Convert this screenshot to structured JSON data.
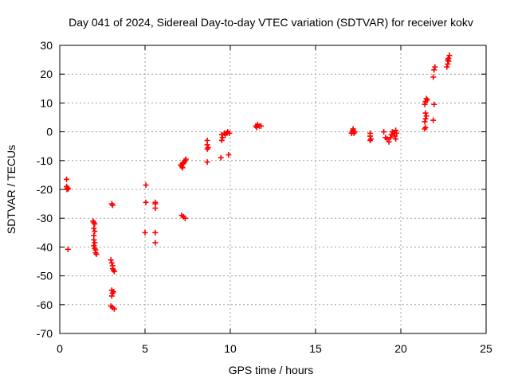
{
  "chart_data": {
    "type": "scatter",
    "title": "Day 041 of 2024, Sidereal Day-to-day VTEC variation (SDTVAR) for receiver kokv",
    "xlabel": "GPS time / hours",
    "ylabel": "SDTVAR / TECUs",
    "xlim": [
      0,
      25
    ],
    "ylim": [
      -70,
      30
    ],
    "xticks": [
      0,
      5,
      10,
      15,
      20,
      25
    ],
    "yticks": [
      -70,
      -60,
      -50,
      -40,
      -30,
      -20,
      -10,
      0,
      10,
      20,
      30
    ],
    "grid": true,
    "marker": "+",
    "color": "#ff0000",
    "series": [
      {
        "name": "SDTVAR",
        "points": [
          [
            0.4,
            -16.5
          ],
          [
            0.4,
            -19.0
          ],
          [
            0.45,
            -19.5
          ],
          [
            0.5,
            -19.8
          ],
          [
            0.42,
            -20.0
          ],
          [
            0.48,
            -40.8
          ],
          [
            1.95,
            -31.0
          ],
          [
            2.0,
            -31.5
          ],
          [
            2.05,
            -32.0
          ],
          [
            2.0,
            -33.5
          ],
          [
            2.05,
            -34.5
          ],
          [
            2.0,
            -37.5
          ],
          [
            2.05,
            -38.5
          ],
          [
            2.0,
            -39.5
          ],
          [
            2.05,
            -40.5
          ],
          [
            2.1,
            -41.0
          ],
          [
            2.1,
            -42.0
          ],
          [
            2.15,
            -42.5
          ],
          [
            2.0,
            -36.0
          ],
          [
            3.05,
            -25.0
          ],
          [
            3.1,
            -25.5
          ],
          [
            3.0,
            -44.5
          ],
          [
            3.05,
            -45.5
          ],
          [
            3.1,
            -46.5
          ],
          [
            3.1,
            -47.5
          ],
          [
            3.15,
            -48.0
          ],
          [
            3.2,
            -48.5
          ],
          [
            3.05,
            -55.0
          ],
          [
            3.1,
            -56.0
          ],
          [
            3.05,
            -57.0
          ],
          [
            3.15,
            -55.5
          ],
          [
            3.0,
            -60.5
          ],
          [
            3.1,
            -61.0
          ],
          [
            3.2,
            -61.5
          ],
          [
            5.05,
            -18.5
          ],
          [
            5.05,
            -24.5
          ],
          [
            5.0,
            -35.0
          ],
          [
            5.6,
            -24.5
          ],
          [
            5.6,
            -25.0
          ],
          [
            5.6,
            -26.5
          ],
          [
            5.6,
            -35.0
          ],
          [
            5.6,
            -38.5
          ],
          [
            7.15,
            -29.0
          ],
          [
            7.25,
            -29.5
          ],
          [
            7.35,
            -30.0
          ],
          [
            7.1,
            -11.5
          ],
          [
            7.15,
            -12.0
          ],
          [
            7.2,
            -11.0
          ],
          [
            7.25,
            -11.0
          ],
          [
            7.3,
            -10.5
          ],
          [
            7.35,
            -10.0
          ],
          [
            7.4,
            -9.5
          ],
          [
            7.2,
            -12.5
          ],
          [
            8.65,
            -3.0
          ],
          [
            8.65,
            -4.5
          ],
          [
            8.7,
            -5.5
          ],
          [
            8.65,
            -6.0
          ],
          [
            8.65,
            -10.5
          ],
          [
            9.45,
            -9.0
          ],
          [
            9.5,
            -1.0
          ],
          [
            9.55,
            -2.0
          ],
          [
            9.5,
            -3.0
          ],
          [
            9.65,
            -0.5
          ],
          [
            9.7,
            -1.0
          ],
          [
            9.8,
            -0.5
          ],
          [
            9.85,
            0.0
          ],
          [
            9.9,
            -8.0
          ],
          [
            9.95,
            -0.5
          ],
          [
            11.5,
            2.0
          ],
          [
            11.55,
            1.5
          ],
          [
            11.6,
            2.5
          ],
          [
            11.7,
            2.0
          ],
          [
            11.8,
            2.0
          ],
          [
            17.1,
            -0.5
          ],
          [
            17.15,
            0.0
          ],
          [
            17.2,
            0.5
          ],
          [
            17.2,
            1.0
          ],
          [
            17.25,
            -0.5
          ],
          [
            17.3,
            0.0
          ],
          [
            18.2,
            -0.5
          ],
          [
            18.2,
            -1.5
          ],
          [
            18.25,
            -2.5
          ],
          [
            18.2,
            -3.0
          ],
          [
            19.0,
            0.0
          ],
          [
            19.1,
            -2.0
          ],
          [
            19.2,
            -2.5
          ],
          [
            19.3,
            -3.5
          ],
          [
            19.4,
            -2.0
          ],
          [
            19.45,
            -1.0
          ],
          [
            19.5,
            0.0
          ],
          [
            19.6,
            -0.5
          ],
          [
            19.65,
            -1.5
          ],
          [
            19.7,
            -2.5
          ],
          [
            19.7,
            0.5
          ],
          [
            19.75,
            -0.5
          ],
          [
            21.4,
            1.0
          ],
          [
            21.45,
            1.5
          ],
          [
            21.4,
            3.5
          ],
          [
            21.45,
            4.5
          ],
          [
            21.5,
            5.5
          ],
          [
            21.45,
            6.5
          ],
          [
            21.4,
            9.5
          ],
          [
            21.45,
            10.5
          ],
          [
            21.5,
            11.5
          ],
          [
            21.55,
            11.0
          ],
          [
            21.9,
            4.0
          ],
          [
            21.95,
            9.5
          ],
          [
            21.9,
            19.0
          ],
          [
            21.95,
            21.5
          ],
          [
            22.0,
            22.5
          ],
          [
            22.7,
            22.5
          ],
          [
            22.75,
            23.5
          ],
          [
            22.8,
            24.5
          ],
          [
            22.75,
            25.0
          ],
          [
            22.8,
            25.5
          ],
          [
            22.85,
            26.5
          ]
        ]
      }
    ]
  }
}
